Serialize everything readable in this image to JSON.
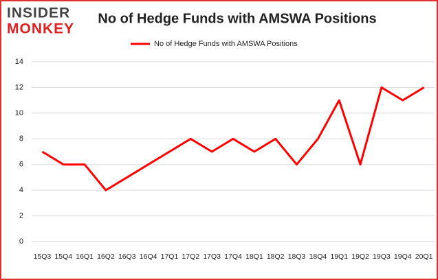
{
  "logo": {
    "top": "INSIDER",
    "bottom": "MONKEY"
  },
  "chart_data": {
    "type": "line",
    "title": "No of Hedge Funds with AMSWA Positions",
    "categories": [
      "15Q3",
      "15Q4",
      "16Q1",
      "16Q2",
      "16Q3",
      "16Q4",
      "17Q1",
      "17Q2",
      "17Q3",
      "17Q4",
      "18Q1",
      "18Q2",
      "18Q3",
      "18Q4",
      "19Q1",
      "19Q2",
      "19Q3",
      "19Q4",
      "20Q1"
    ],
    "series": [
      {
        "name": "No of Hedge Funds with AMSWA Positions",
        "color": "#ff0000",
        "values": [
          7,
          6,
          6,
          4,
          5,
          6,
          7,
          8,
          7,
          8,
          7,
          8,
          6,
          8,
          11,
          6,
          12,
          11,
          12
        ]
      }
    ],
    "ylim": [
      0,
      14
    ],
    "yticks": [
      0,
      2,
      4,
      6,
      8,
      10,
      12,
      14
    ],
    "grid": true,
    "legend": "top"
  }
}
